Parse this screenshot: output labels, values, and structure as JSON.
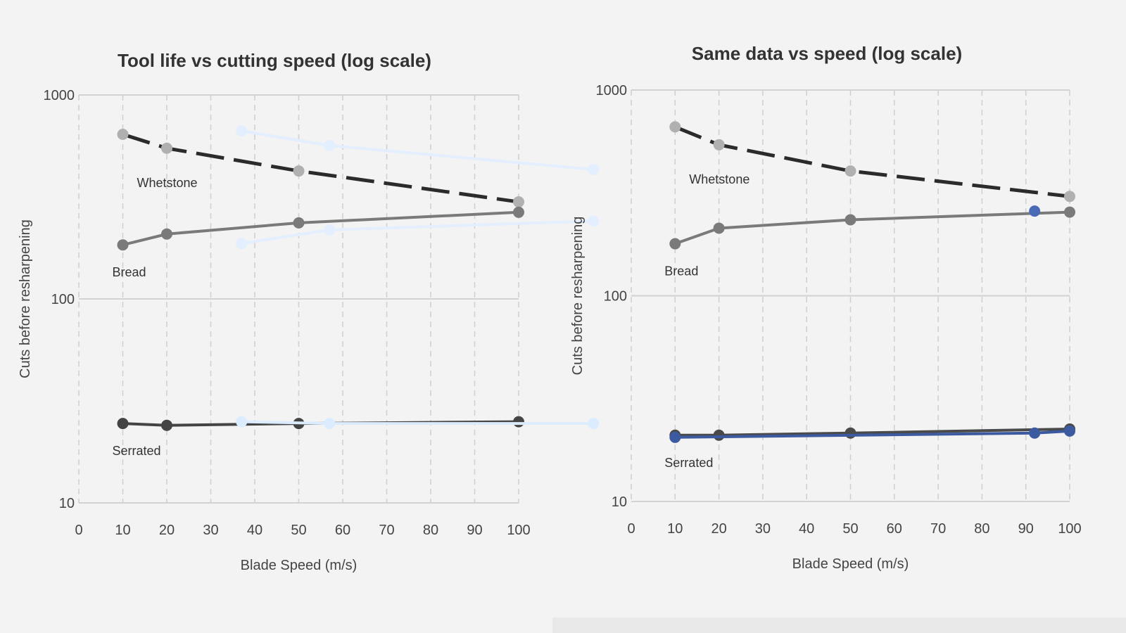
{
  "chart_data": [
    {
      "type": "line",
      "title": "Tool life vs cutting speed (log scale)",
      "xlabel": "Blade Speed (m/s)",
      "ylabel": "Cuts before resharpening",
      "xlim": [
        0,
        100
      ],
      "ylim": [
        10,
        1000
      ],
      "y_scale": "log",
      "x_ticks": [
        "0",
        "10",
        "20",
        "30",
        "40",
        "50",
        "60",
        "70",
        "80",
        "90",
        "100"
      ],
      "y_ticks": [
        {
          "value": 1000,
          "label": "1000"
        },
        {
          "value": 100,
          "label": "100"
        },
        {
          "value": 10,
          "label": "10"
        }
      ],
      "grid": "vertical dashed",
      "series": [
        {
          "name": "Whetstone",
          "color": "#2b2b2b",
          "dash": true,
          "x": [
            10,
            20,
            50,
            100
          ],
          "y": [
            641,
            548,
            424,
            299
          ]
        },
        {
          "name": "Bread",
          "color": "#7a7a7a",
          "dash": false,
          "x": [
            10,
            20,
            50,
            100
          ],
          "y": [
            184,
            208,
            236,
            266
          ]
        },
        {
          "name": "Serrated",
          "color": "#444444",
          "dash": false,
          "x": [
            10,
            20,
            50,
            100
          ],
          "y": [
            24.5,
            24,
            24.5,
            25
          ]
        },
        {
          "color": "#e3eeff",
          "dash": false,
          "x": [
            37,
            57,
            117
          ],
          "y": [
            667,
            565,
            431
          ]
        },
        {
          "color": "#e3eeff",
          "dash": false,
          "x": [
            37,
            57,
            117
          ],
          "y": [
            187,
            218,
            241
          ]
        },
        {
          "color": "#dcecff",
          "dash": false,
          "x": [
            37,
            57,
            117
          ],
          "y": [
            25,
            24.5,
            24.5
          ]
        }
      ]
    },
    {
      "type": "line",
      "title": "Same data vs speed (log scale)",
      "xlabel": "Blade Speed (m/s)",
      "ylabel": "Cuts before resharpening",
      "xlim": [
        0,
        100
      ],
      "ylim": [
        10,
        1000
      ],
      "y_scale": "log",
      "x_ticks": [
        "0",
        "10",
        "20",
        "30",
        "40",
        "50",
        "60",
        "70",
        "80",
        "90",
        "100"
      ],
      "y_ticks": [
        {
          "value": 1000,
          "label": "1000"
        },
        {
          "value": 100,
          "label": "100"
        },
        {
          "value": 10,
          "label": "10"
        }
      ],
      "grid": "vertical dashed",
      "series": [
        {
          "name": "Whetstone",
          "color": "#2b2b2b",
          "dash": true,
          "x": [
            10,
            20,
            50,
            100
          ],
          "y": [
            662,
            542,
            404,
            304
          ]
        },
        {
          "name": "Bread",
          "color": "#7a7a7a",
          "dash": false,
          "x": [
            10,
            20,
            50,
            100
          ],
          "y": [
            179,
            213,
            234,
            255
          ]
        },
        {
          "name": "Serrated",
          "color": "#4a4a4a",
          "dash": false,
          "x": [
            10,
            20,
            50,
            100
          ],
          "y": [
            21,
            21,
            21.5,
            22.5
          ]
        },
        {
          "color": "#3b5aa0",
          "dash": false,
          "x": [
            10,
            92,
            100
          ],
          "y": [
            20.5,
            21.5,
            22
          ]
        },
        {
          "color": "#4a6ab8",
          "dash": false,
          "x": [
            92
          ],
          "y": [
            258
          ]
        }
      ]
    }
  ]
}
